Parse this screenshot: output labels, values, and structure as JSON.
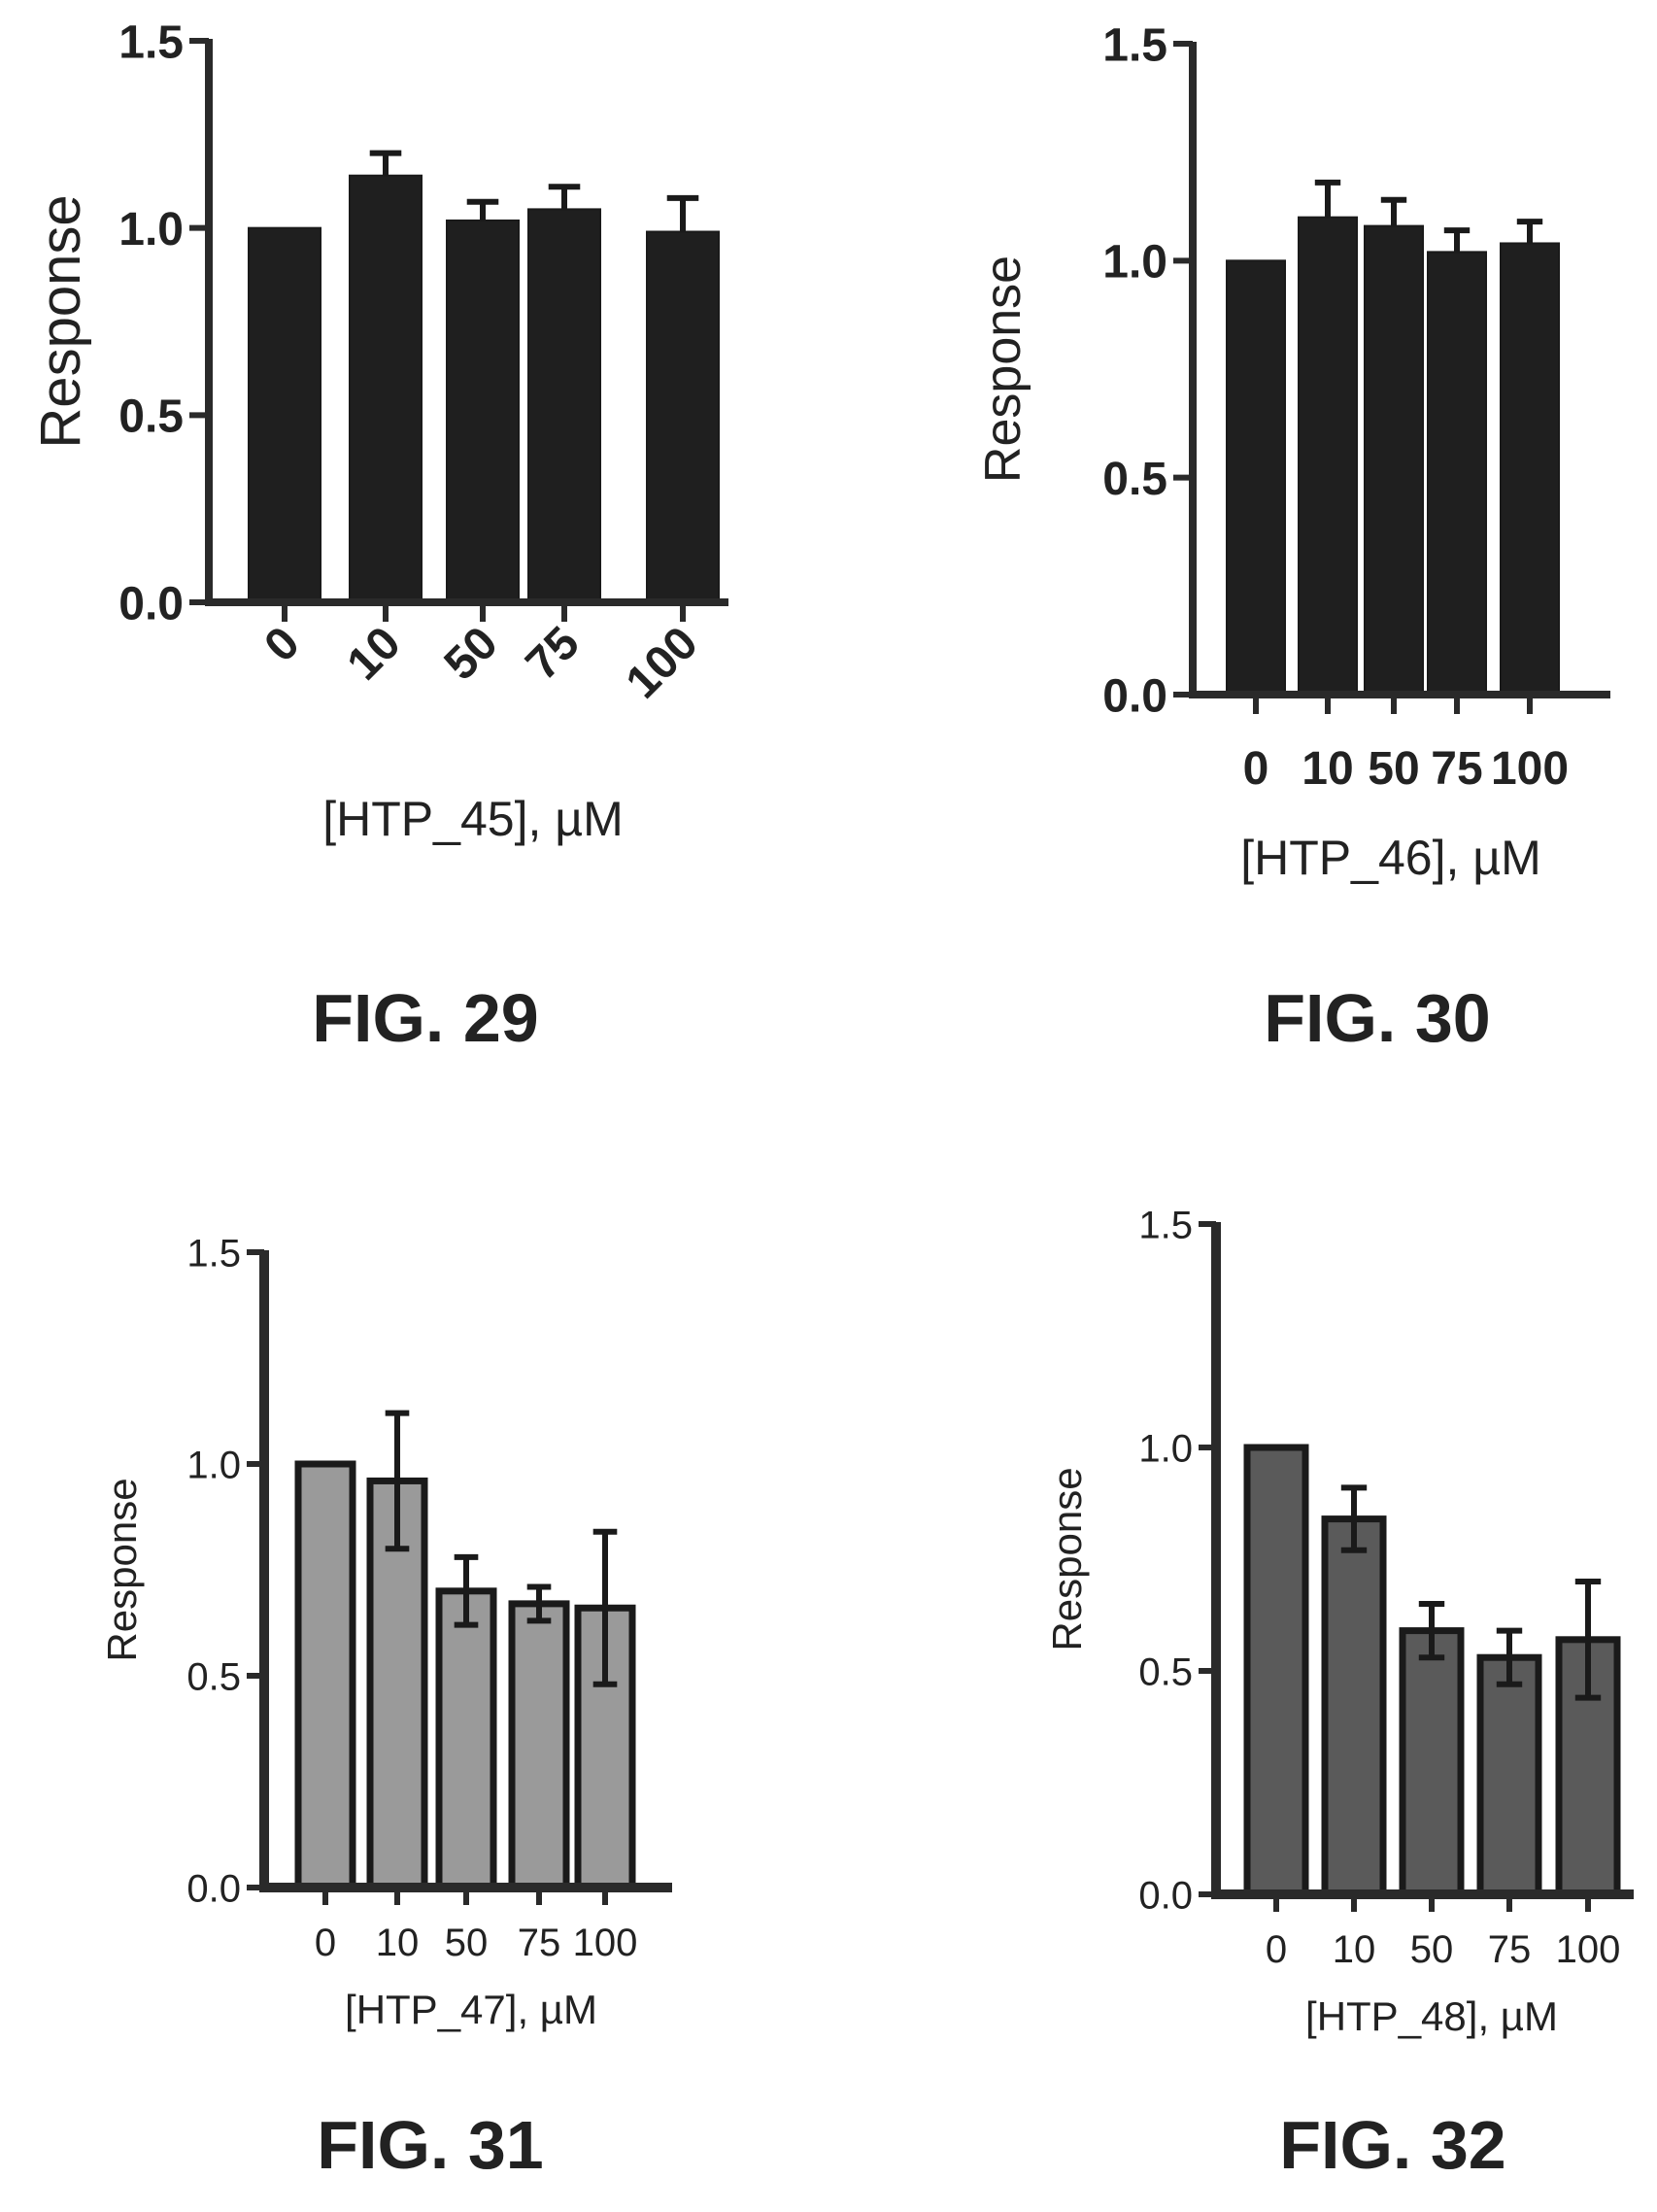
{
  "figures": [
    {
      "caption": "FIG. 29",
      "chart_data": {
        "type": "bar",
        "categories": [
          "0",
          "10",
          "50",
          "75",
          "100"
        ],
        "values": [
          1.0,
          1.14,
          1.02,
          1.05,
          0.99
        ],
        "errors": [
          0.0,
          0.06,
          0.05,
          0.06,
          0.09
        ],
        "ylabel": "Response",
        "xlabel": "[HTP_45], µM",
        "ylim": [
          0,
          1.5
        ],
        "yticks": [
          "0.0",
          "0.5",
          "1.0",
          "1.5"
        ],
        "bar_color": "#1f1f1f",
        "error_style": "upper"
      }
    },
    {
      "caption": "FIG. 30",
      "chart_data": {
        "type": "bar",
        "categories": [
          "0",
          "10",
          "50",
          "75",
          "100"
        ],
        "values": [
          1.0,
          1.1,
          1.08,
          1.02,
          1.04
        ],
        "errors": [
          0.0,
          0.08,
          0.06,
          0.05,
          0.05
        ],
        "ylabel": "Response",
        "xlabel": "[HTP_46], µM",
        "ylim": [
          0,
          1.5
        ],
        "yticks": [
          "0.0",
          "0.5",
          "1.0",
          "1.5"
        ],
        "bar_color": "#1f1f1f",
        "error_style": "upper"
      }
    },
    {
      "caption": "FIG. 31",
      "chart_data": {
        "type": "bar",
        "categories": [
          "0",
          "10",
          "50",
          "75",
          "100"
        ],
        "values": [
          1.0,
          0.96,
          0.7,
          0.67,
          0.66
        ],
        "errors": [
          0.0,
          0.16,
          0.08,
          0.04,
          0.18
        ],
        "ylabel": "Response",
        "xlabel": "[HTP_47], µM",
        "ylim": [
          0,
          1.5
        ],
        "yticks": [
          "0.0",
          "0.5",
          "1.0",
          "1.5"
        ],
        "bar_color": "#9a9a9a",
        "error_style": "both"
      }
    },
    {
      "caption": "FIG. 32",
      "chart_data": {
        "type": "bar",
        "categories": [
          "0",
          "10",
          "50",
          "75",
          "100"
        ],
        "values": [
          1.0,
          0.84,
          0.59,
          0.53,
          0.57
        ],
        "errors": [
          0.0,
          0.07,
          0.06,
          0.06,
          0.13
        ],
        "ylabel": "Response",
        "xlabel": "[HTP_48], µM",
        "ylim": [
          0,
          1.5
        ],
        "yticks": [
          "0.0",
          "0.5",
          "1.0",
          "1.5"
        ],
        "bar_color": "#5a5a5a",
        "error_style": "both"
      }
    }
  ]
}
